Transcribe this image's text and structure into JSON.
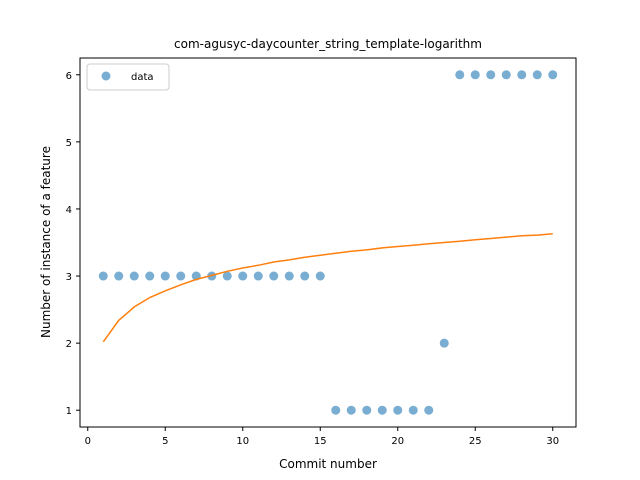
{
  "chart_data": {
    "type": "scatter",
    "title": "com-agusyc-daycounter_string_template-logarithm",
    "xlabel": "Commit number",
    "ylabel": "Number of instance of a feature",
    "xlim": [
      -0.5,
      31.5
    ],
    "ylim": [
      0.75,
      6.25
    ],
    "xticks": [
      0,
      5,
      10,
      15,
      20,
      25,
      30
    ],
    "yticks": [
      1,
      2,
      3,
      4,
      5,
      6
    ],
    "grid": false,
    "legend": {
      "placement": "top-left",
      "entries": [
        "data"
      ]
    },
    "colors": {
      "points": "#1f77b4",
      "fit": "#ff7f0e"
    },
    "series": [
      {
        "name": "data",
        "kind": "scatter",
        "x": [
          1,
          2,
          3,
          4,
          5,
          6,
          7,
          8,
          9,
          10,
          11,
          12,
          13,
          14,
          15,
          16,
          17,
          18,
          19,
          20,
          21,
          22,
          23,
          24,
          25,
          26,
          27,
          28,
          29,
          30
        ],
        "y": [
          3,
          3,
          3,
          3,
          3,
          3,
          3,
          3,
          3,
          3,
          3,
          3,
          3,
          3,
          3,
          1,
          1,
          1,
          1,
          1,
          1,
          1,
          2,
          6,
          6,
          6,
          6,
          6,
          6,
          6
        ]
      },
      {
        "kind": "line",
        "x": [
          1,
          2,
          3,
          4,
          5,
          6,
          7,
          8,
          9,
          10,
          11,
          12,
          13,
          14,
          15,
          16,
          17,
          18,
          19,
          20,
          21,
          22,
          23,
          24,
          25,
          26,
          27,
          28,
          29,
          30
        ],
        "y": [
          2.02,
          2.34,
          2.54,
          2.68,
          2.78,
          2.87,
          2.95,
          3.01,
          3.07,
          3.12,
          3.16,
          3.21,
          3.24,
          3.28,
          3.31,
          3.34,
          3.37,
          3.39,
          3.42,
          3.44,
          3.46,
          3.48,
          3.5,
          3.52,
          3.54,
          3.56,
          3.58,
          3.6,
          3.61,
          3.63
        ]
      }
    ]
  }
}
